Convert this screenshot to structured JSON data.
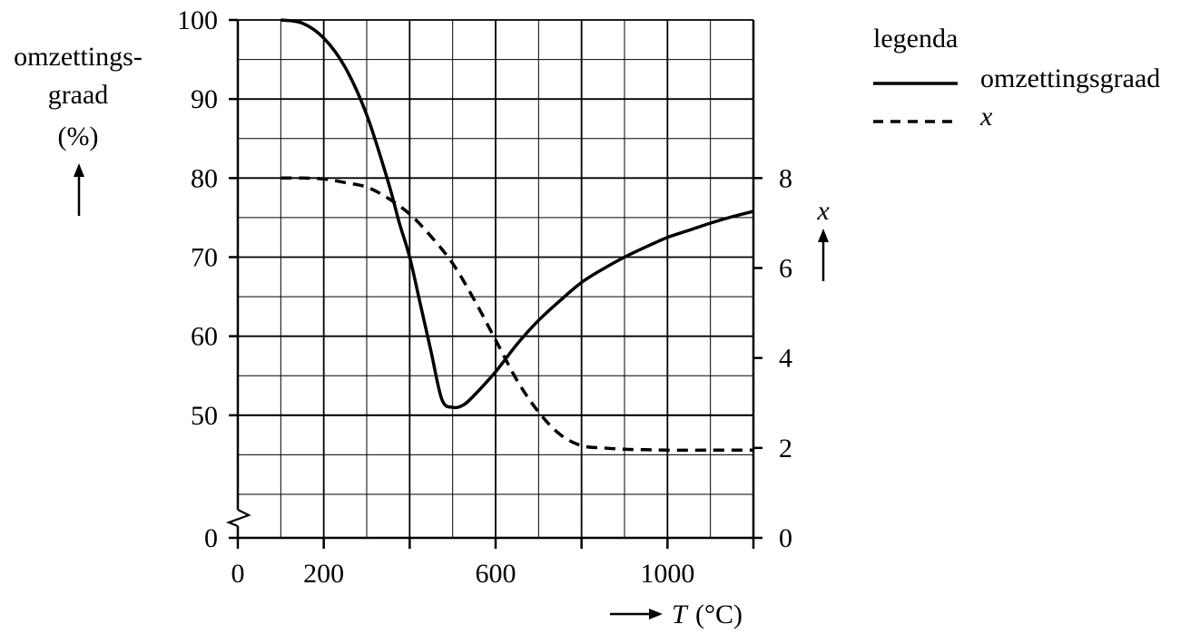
{
  "chart_data": {
    "type": "line",
    "x_label_symbol": "T",
    "x_label_unit": "(°C)",
    "y_left_label_line1": "omzettings-",
    "y_left_label_line2": "graad",
    "y_left_label_line3": "(%)",
    "y_right_label": "x",
    "x_ticks": [
      {
        "value": 0,
        "label": "0"
      },
      {
        "value": 200,
        "label": "200"
      },
      {
        "value": 600,
        "label": "600"
      },
      {
        "value": 1000,
        "label": "1000"
      }
    ],
    "y_left_ticks": [
      {
        "value": 0,
        "label": "0"
      },
      {
        "value": 50,
        "label": "50"
      },
      {
        "value": 60,
        "label": "60"
      },
      {
        "value": 70,
        "label": "70"
      },
      {
        "value": 80,
        "label": "80"
      },
      {
        "value": 90,
        "label": "90"
      },
      {
        "value": 100,
        "label": "100"
      }
    ],
    "y_right_ticks": [
      {
        "value": 0,
        "label": "0"
      },
      {
        "value": 2,
        "label": "2"
      },
      {
        "value": 4,
        "label": "4"
      },
      {
        "value": 6,
        "label": "6"
      },
      {
        "value": 8,
        "label": "8"
      }
    ],
    "xlim": [
      0,
      1200
    ],
    "y_left_lim": [
      40,
      100
    ],
    "y_right_lim": [
      0,
      8
    ],
    "axis_break_left": true,
    "grid": true,
    "legend_title": "legenda",
    "legend_position": "top-right",
    "series": [
      {
        "name": "omzettingsgraad",
        "axis": "left",
        "style": "solid",
        "x": [
          100,
          150,
          200,
          250,
          300,
          350,
          375,
          400,
          425,
          450,
          475,
          500,
          525,
          550,
          600,
          650,
          700,
          750,
          800,
          850,
          900,
          950,
          1000,
          1050,
          1100,
          1150,
          1200
        ],
        "y": [
          100,
          99.6,
          97.7,
          94,
          88,
          79.5,
          74.5,
          70,
          64,
          58,
          52,
          51,
          51.3,
          52.5,
          55.5,
          59,
          62,
          64.5,
          66.8,
          68.5,
          70,
          71.3,
          72.5,
          73.4,
          74.3,
          75.1,
          75.8
        ]
      },
      {
        "name": "x",
        "axis": "right",
        "style": "dashed",
        "x": [
          100,
          150,
          200,
          250,
          300,
          350,
          400,
          450,
          500,
          550,
          600,
          650,
          700,
          750,
          800,
          850,
          900,
          950,
          1000,
          1100,
          1200
        ],
        "y": [
          8,
          8,
          7.98,
          7.9,
          7.8,
          7.55,
          7.2,
          6.7,
          6.1,
          5.3,
          4.4,
          3.5,
          2.8,
          2.3,
          2.05,
          2.0,
          1.97,
          1.96,
          1.95,
          1.95,
          1.95
        ]
      }
    ]
  }
}
